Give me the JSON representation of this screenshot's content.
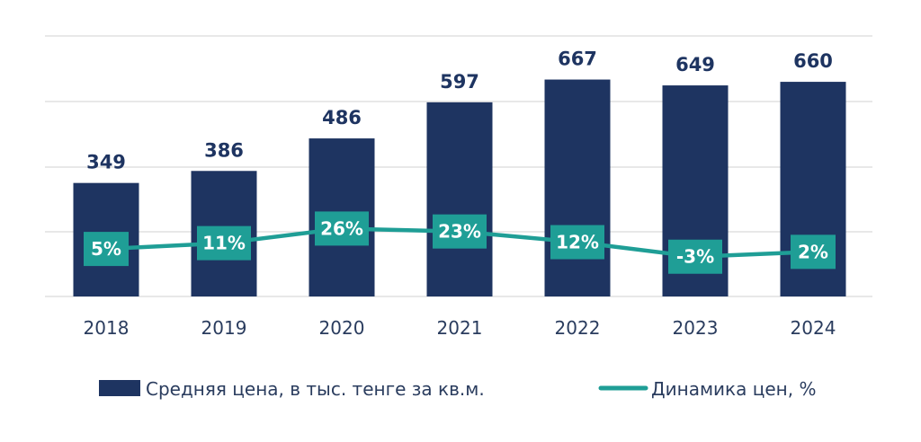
{
  "chart_data": {
    "type": "bar",
    "categories": [
      "2018",
      "2019",
      "2020",
      "2021",
      "2022",
      "2023",
      "2024"
    ],
    "series": [
      {
        "name": "Средняя цена, в тыс. тенге за кв.м.",
        "type": "bar",
        "values": [
          349,
          386,
          486,
          597,
          667,
          649,
          660
        ]
      },
      {
        "name": "Динамика цен, %",
        "type": "line",
        "values": [
          5,
          11,
          26,
          23,
          12,
          -3,
          2
        ]
      }
    ],
    "bar_labels": [
      "349",
      "386",
      "486",
      "597",
      "667",
      "649",
      "660"
    ],
    "line_labels": [
      "5%",
      "11%",
      "26%",
      "23%",
      "12%",
      "-3%",
      "2%"
    ],
    "title": "",
    "xlabel": "",
    "ylabel": "",
    "ylim": [
      0,
      800
    ],
    "grid": true,
    "legend_position": "bottom",
    "colors": {
      "bar": "#1e3461",
      "line": "#1f9e96",
      "grid": "#d9d9d9"
    }
  },
  "legend": {
    "bar_label": "Средняя цена, в тыс. тенге за кв.м.",
    "line_label": "Динамика цен, %"
  }
}
